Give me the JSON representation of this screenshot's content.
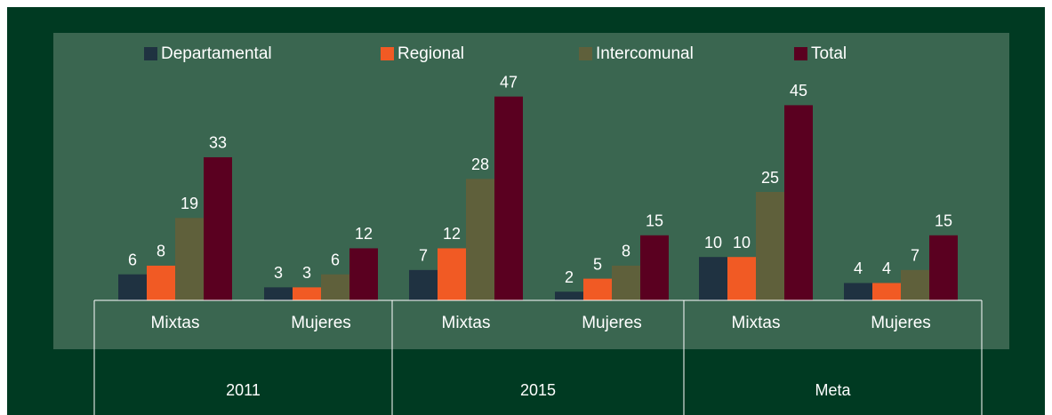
{
  "chart_data": {
    "type": "bar",
    "categories": [
      "Mixtas",
      "Mujeres",
      "Mixtas",
      "Mujeres",
      "Mixtas",
      "Mujeres"
    ],
    "groups": [
      "2011",
      "2015",
      "Meta"
    ],
    "series": [
      {
        "name": "Departamental",
        "color": "#1f3241",
        "values": [
          6,
          3,
          7,
          2,
          10,
          4
        ]
      },
      {
        "name": "Regional",
        "color": "#f15a24",
        "values": [
          8,
          3,
          12,
          5,
          10,
          4
        ]
      },
      {
        "name": "Intercomunal",
        "color": "#5f603b",
        "values": [
          19,
          6,
          28,
          8,
          25,
          7
        ]
      },
      {
        "name": "Total",
        "color": "#5a0020",
        "values": [
          33,
          12,
          47,
          15,
          45,
          15
        ]
      }
    ],
    "ylim": [
      0,
      50
    ]
  }
}
